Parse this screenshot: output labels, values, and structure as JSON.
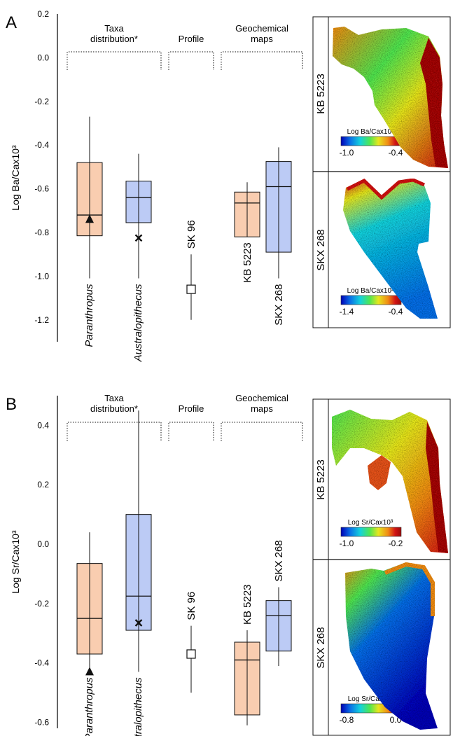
{
  "colors": {
    "paranthropus_fill": "#f9cdb0",
    "australopithecus_fill": "#bccbf5",
    "stroke": "#111111",
    "colormap": [
      "#0000b4",
      "#0a6ee6",
      "#14d2dc",
      "#50e650",
      "#e6e61e",
      "#f08c14",
      "#d21414",
      "#9a0a0a"
    ]
  },
  "chart_data": [
    {
      "panel": "A",
      "type": "box",
      "ylabel": "Log Ba/Cax10³",
      "ylim": [
        -1.3,
        0.2
      ],
      "yticks": [
        "0.2",
        "0.0",
        "-0.2",
        "-0.4",
        "-0.6",
        "-0.8",
        "-1.0",
        "-1.2"
      ],
      "ytick_values": [
        0.2,
        0.0,
        -0.2,
        -0.4,
        -0.6,
        -0.8,
        -1.0,
        -1.2
      ],
      "headers": [
        "Taxa\ndistribution*",
        "Profile",
        "Geochemical\nmaps"
      ],
      "boxes": [
        {
          "label": "Paranthropus",
          "taxon": true,
          "fill": "paranthropus",
          "wlow": -1.01,
          "q1": -0.815,
          "median": -0.72,
          "q3": -0.48,
          "whigh": -0.27,
          "marker": "triangle",
          "marker_value": -0.74
        },
        {
          "label": "Australopithecus",
          "taxon": true,
          "fill": "australopithecus",
          "wlow": -1.01,
          "q1": -0.755,
          "median": -0.64,
          "q3": -0.565,
          "whigh": -0.44,
          "marker": "cross",
          "marker_value": -0.825
        },
        {
          "label": "SK 96",
          "taxon": false,
          "fill": "none",
          "wlow": -1.2,
          "q1": null,
          "median": null,
          "q3": null,
          "whigh": -0.9,
          "marker": "square",
          "marker_value": -1.06
        },
        {
          "label": "KB 5223",
          "taxon": false,
          "fill": "paranthropus",
          "wlow": -0.82,
          "q1": -0.82,
          "median": -0.665,
          "q3": -0.615,
          "whigh": -0.57,
          "marker": "none",
          "marker_value": null
        },
        {
          "label": "SKX 268",
          "taxon": false,
          "fill": "australopithecus",
          "wlow": -1.01,
          "q1": -0.89,
          "median": -0.59,
          "q3": -0.475,
          "whigh": -0.41,
          "marker": "none",
          "marker_value": null
        }
      ],
      "maps": [
        {
          "label": "KB 5223",
          "colorbar_title": "Log Ba/Cax10³",
          "cb_min": "-1.0",
          "cb_max": "-0.4"
        },
        {
          "label": "SKX 268",
          "colorbar_title": "Log Ba/Cax10³",
          "cb_min": "-1.4",
          "cb_max": "-0.4"
        }
      ]
    },
    {
      "panel": "B",
      "type": "box",
      "ylabel": "Log Sr/Cax10³",
      "ylim": [
        -0.62,
        0.5
      ],
      "yticks": [
        "0.4",
        "0.2",
        "0.0",
        "-0.2",
        "-0.4",
        "-0.6"
      ],
      "ytick_values": [
        0.4,
        0.2,
        0.0,
        -0.2,
        -0.4,
        -0.6
      ],
      "headers": [
        "Taxa\ndistribution*",
        "Profile",
        "Geochemical\nmaps"
      ],
      "boxes": [
        {
          "label": "Paranthropus",
          "taxon": true,
          "fill": "paranthropus",
          "wlow": -0.43,
          "q1": -0.37,
          "median": -0.25,
          "q3": -0.065,
          "whigh": 0.04,
          "marker": "triangle",
          "marker_value": -0.43
        },
        {
          "label": "Australopithecus",
          "taxon": true,
          "fill": "australopithecus",
          "wlow": -0.43,
          "q1": -0.29,
          "median": -0.175,
          "q3": 0.1,
          "whigh": 0.45,
          "marker": "cross",
          "marker_value": -0.265
        },
        {
          "label": "SK 96",
          "taxon": false,
          "fill": "none",
          "wlow": -0.5,
          "q1": null,
          "median": null,
          "q3": null,
          "whigh": -0.275,
          "marker": "square",
          "marker_value": -0.37
        },
        {
          "label": "KB 5223",
          "taxon": false,
          "fill": "paranthropus",
          "wlow": -0.61,
          "q1": -0.575,
          "median": -0.39,
          "q3": -0.33,
          "whigh": -0.29,
          "marker": "none",
          "marker_value": null
        },
        {
          "label": "SKX 268",
          "taxon": false,
          "fill": "australopithecus",
          "wlow": -0.41,
          "q1": -0.36,
          "median": -0.24,
          "q3": -0.19,
          "whigh": -0.145,
          "marker": "none",
          "marker_value": null
        }
      ],
      "maps": [
        {
          "label": "KB 5223",
          "colorbar_title": "Log Sr/Cax10³",
          "cb_min": "-1.0",
          "cb_max": "-0.2"
        },
        {
          "label": "SKX 268",
          "colorbar_title": "Log Sr/Cax10³",
          "cb_min": "-0.8",
          "cb_max": "0.0"
        }
      ]
    }
  ]
}
